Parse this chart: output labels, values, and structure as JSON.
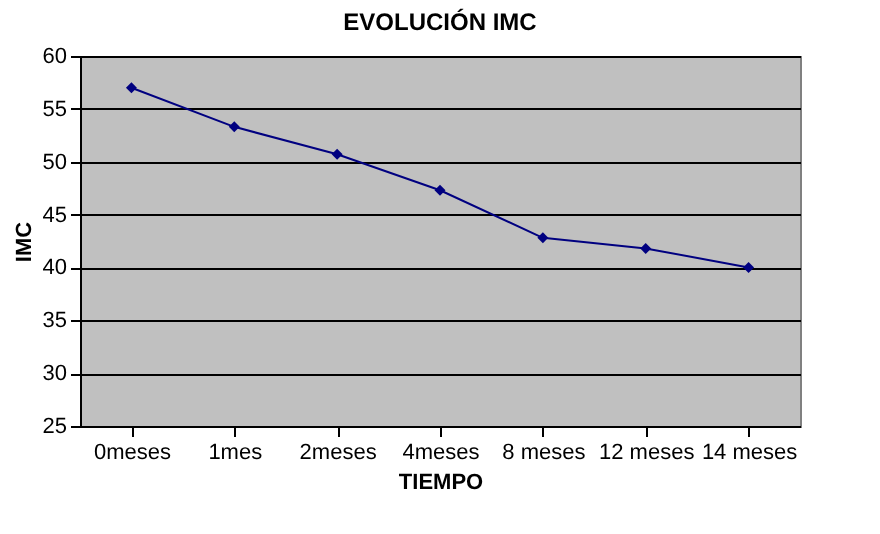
{
  "chart_data": {
    "type": "line",
    "title": "EVOLUCIÓN IMC",
    "xlabel": "TIEMPO",
    "ylabel": "IMC",
    "categories": [
      "0meses",
      "1mes",
      "2meses",
      "4meses",
      "8 meses",
      "12 meses",
      "14 meses"
    ],
    "series": [
      {
        "color": "#000080",
        "values": [
          57.0,
          53.3,
          50.7,
          47.3,
          42.8,
          41.8,
          40.0
        ]
      }
    ],
    "ylim": [
      25,
      60
    ],
    "yticks": [
      25,
      30,
      35,
      40,
      45,
      50,
      55,
      60
    ],
    "grid": "y",
    "marker": "diamond",
    "line_style": "solid",
    "legend": false
  }
}
